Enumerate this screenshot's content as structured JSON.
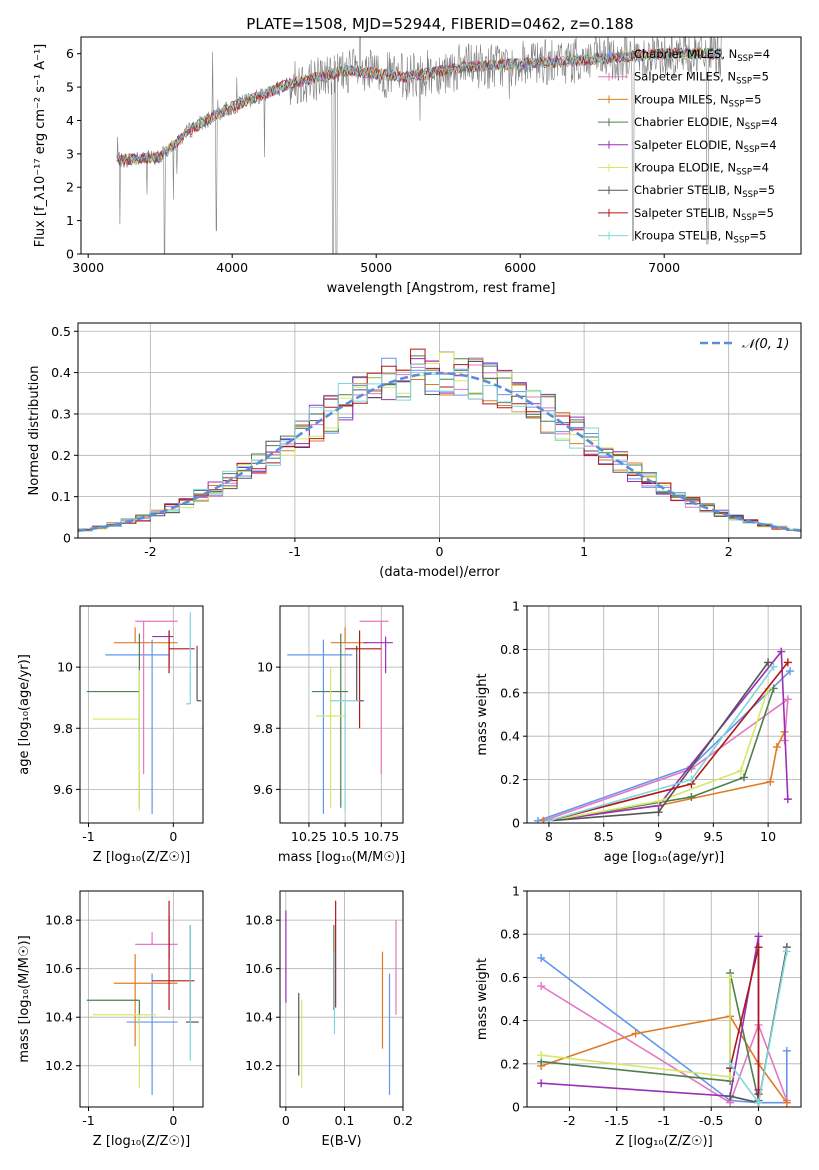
{
  "figure": {
    "title": "PLATE=1508, MJD=52944, FIBERID=0462, z=0.188"
  },
  "series_colors": {
    "Chabrier MILES": "#6495ED",
    "Salpeter MILES": "#E377C2",
    "Kroupa MILES": "#E07B24",
    "Chabrier ELODIE": "#4E7F4E",
    "Salpeter ELODIE": "#9B30B5",
    "Kroupa ELODIE": "#D4E86A",
    "Chabrier STELIB": "#555555",
    "Salpeter STELIB": "#B01818",
    "Kroupa STELIB": "#7FD6DC"
  },
  "chart_data": [
    {
      "id": "spectrum",
      "type": "line",
      "xlabel": "wavelength [Angstrom, rest frame]",
      "ylabel": "Flux [f_λ10⁻¹⁷ erg cm⁻² s⁻¹ A⁻¹]",
      "xlim": [
        2950,
        7950
      ],
      "ylim": [
        0,
        6.5
      ],
      "xticks": [
        3000,
        4000,
        5000,
        6000,
        7000
      ],
      "yticks": [
        0,
        1,
        2,
        3,
        4,
        5,
        6
      ],
      "legend_position": "right",
      "legend": [
        {
          "label": "Chabrier MILES, N",
          "sub": "SSP",
          "suffix": "=4"
        },
        {
          "label": "Salpeter MILES, N",
          "sub": "SSP",
          "suffix": "=5"
        },
        {
          "label": "Kroupa MILES, N",
          "sub": "SSP",
          "suffix": "=5"
        },
        {
          "label": "Chabrier ELODIE, N",
          "sub": "SSP",
          "suffix": "=4"
        },
        {
          "label": "Salpeter ELODIE, N",
          "sub": "SSP",
          "suffix": "=4"
        },
        {
          "label": "Kroupa ELODIE, N",
          "sub": "SSP",
          "suffix": "=4"
        },
        {
          "label": "Chabrier STELIB, N",
          "sub": "SSP",
          "suffix": "=5"
        },
        {
          "label": "Salpeter STELIB, N",
          "sub": "SSP",
          "suffix": "=5"
        },
        {
          "label": "Kroupa STELIB, N",
          "sub": "SSP",
          "suffix": "=5"
        }
      ],
      "data_range": [
        3200,
        7400
      ],
      "continuum": [
        [
          3200,
          2.8
        ],
        [
          3500,
          2.9
        ],
        [
          3700,
          3.7
        ],
        [
          3900,
          4.2
        ],
        [
          4100,
          4.6
        ],
        [
          4400,
          5.1
        ],
        [
          4800,
          5.5
        ],
        [
          5200,
          5.3
        ],
        [
          5600,
          5.6
        ],
        [
          6000,
          5.7
        ],
        [
          6400,
          5.8
        ],
        [
          7000,
          6.0
        ],
        [
          7400,
          6.0
        ]
      ],
      "absorption_features": [
        [
          3530,
          0
        ],
        [
          3890,
          0.7
        ],
        [
          4700,
          0
        ],
        [
          4725,
          0
        ],
        [
          6785,
          0.4
        ],
        [
          7300,
          0.3
        ]
      ]
    },
    {
      "id": "residuals",
      "type": "histogram",
      "xlabel": "(data-model)/error",
      "ylabel": "Normed distribution",
      "xlim": [
        -2.5,
        2.5
      ],
      "ylim": [
        0,
        0.52
      ],
      "xticks": [
        -2,
        -1,
        0,
        1,
        2
      ],
      "yticks": [
        0,
        0.1,
        0.2,
        0.3,
        0.4,
        0.5
      ],
      "grid": true,
      "legend": "𝒩(0, 1)",
      "legend_position": "upper right",
      "bin_width": 0.1,
      "reference_curve": "normal(0,1)"
    },
    {
      "id": "age_vs_Z",
      "type": "errorbar",
      "xlabel": "Z [log₁₀(Z/Z☉)]",
      "ylabel": "age  [log₁₀(age/yr)]",
      "xlim": [
        -1.1,
        0.35
      ],
      "ylim": [
        9.49,
        10.2
      ],
      "xticks": [
        -1,
        0
      ],
      "yticks": [
        9.6,
        9.8,
        10.0
      ],
      "grid": true,
      "points": [
        {
          "name": "Chabrier MILES",
          "x": -0.25,
          "xerr": [
            0.55,
            0.2
          ],
          "y": 10.04,
          "yerr": [
            0.52,
            0.05
          ]
        },
        {
          "name": "Salpeter MILES",
          "x": -0.35,
          "xerr": [
            0.1,
            0.4
          ],
          "y": 10.15,
          "yerr": [
            0.5,
            0.0
          ]
        },
        {
          "name": "Kroupa MILES",
          "x": -0.45,
          "xerr": [
            0.25,
            0.5
          ],
          "y": 10.08,
          "yerr": [
            0.0,
            0.05
          ]
        },
        {
          "name": "Chabrier ELODIE",
          "x": -0.4,
          "xerr": [
            0.62,
            0.0
          ],
          "y": 9.92,
          "yerr": [
            0.38,
            0.19
          ]
        },
        {
          "name": "Salpeter ELODIE",
          "x": -0.05,
          "xerr": [
            0.2,
            0.05
          ],
          "y": 10.1,
          "yerr": [
            0.1,
            0.02
          ]
        },
        {
          "name": "Kroupa ELODIE",
          "x": -0.4,
          "xerr": [
            0.55,
            0.0
          ],
          "y": 9.83,
          "yerr": [
            0.3,
            0.16
          ]
        },
        {
          "name": "Chabrier STELIB",
          "x": 0.28,
          "xerr": [
            0.0,
            0.05
          ],
          "y": 9.89,
          "yerr": [
            0.0,
            0.18
          ]
        },
        {
          "name": "Salpeter STELIB",
          "x": -0.05,
          "xerr": [
            0.0,
            0.3
          ],
          "y": 10.06,
          "yerr": [
            0.08,
            0.06
          ]
        },
        {
          "name": "Kroupa STELIB",
          "x": 0.2,
          "xerr": [
            0.05,
            0.0
          ],
          "y": 9.88,
          "yerr": [
            0.0,
            0.3
          ]
        }
      ]
    },
    {
      "id": "age_vs_mass",
      "type": "errorbar",
      "xlabel": "mass [log₁₀(M/M☉)]",
      "ylabel": "",
      "xlim": [
        10.05,
        10.9
      ],
      "ylim": [
        9.49,
        10.2
      ],
      "xticks": [
        10.25,
        10.5,
        10.75
      ],
      "yticks": [
        9.6,
        9.8,
        10.0
      ],
      "grid": true,
      "points": [
        {
          "name": "Chabrier MILES",
          "x": 10.35,
          "xerr": [
            0.25,
            0.2
          ],
          "y": 10.04,
          "yerr": [
            0.52,
            0.05
          ]
        },
        {
          "name": "Salpeter MILES",
          "x": 10.75,
          "xerr": [
            0.15,
            0.05
          ],
          "y": 10.15,
          "yerr": [
            0.5,
            0.0
          ]
        },
        {
          "name": "Kroupa MILES",
          "x": 10.5,
          "xerr": [
            0.1,
            0.15
          ],
          "y": 10.08,
          "yerr": [
            0.0,
            0.05
          ]
        },
        {
          "name": "Chabrier ELODIE",
          "x": 10.47,
          "xerr": [
            0.2,
            0.05
          ],
          "y": 9.92,
          "yerr": [
            0.38,
            0.19
          ]
        },
        {
          "name": "Salpeter ELODIE",
          "x": 10.78,
          "xerr": [
            0.15,
            0.05
          ],
          "y": 10.08,
          "yerr": [
            0.1,
            0.02
          ]
        },
        {
          "name": "Kroupa ELODIE",
          "x": 10.4,
          "xerr": [
            0.1,
            0.1
          ],
          "y": 9.84,
          "yerr": [
            0.3,
            0.16
          ]
        },
        {
          "name": "Chabrier STELIB",
          "x": 10.58,
          "xerr": [
            0.0,
            0.05
          ],
          "y": 9.89,
          "yerr": [
            0.0,
            0.18
          ]
        },
        {
          "name": "Salpeter STELIB",
          "x": 10.6,
          "xerr": [
            0.1,
            0.15
          ],
          "y": 10.06,
          "yerr": [
            0.26,
            0.06
          ]
        },
        {
          "name": "Kroupa STELIB",
          "x": 10.5,
          "xerr": [
            0.1,
            0.1
          ],
          "y": 9.89,
          "yerr": [
            0.36,
            0.0
          ]
        }
      ]
    },
    {
      "id": "weight_vs_age",
      "type": "line",
      "xlabel": "age  [log₁₀(age/yr)]",
      "ylabel": "mass weight",
      "xlim": [
        7.8,
        10.3
      ],
      "ylim": [
        0,
        1.0
      ],
      "xticks": [
        8.0,
        8.5,
        9.0,
        9.5,
        10.0
      ],
      "yticks": [
        0.0,
        0.2,
        0.4,
        0.6,
        0.8,
        1.0
      ],
      "grid": true,
      "series": [
        {
          "name": "Chabrier MILES",
          "x": [
            7.9,
            9.3,
            10.2
          ],
          "y": [
            0.01,
            0.26,
            0.7
          ]
        },
        {
          "name": "Salpeter MILES",
          "x": [
            7.95,
            9.3,
            10.18,
            10.15
          ],
          "y": [
            0.01,
            0.25,
            0.57,
            0.38
          ]
        },
        {
          "name": "Kroupa MILES",
          "x": [
            7.95,
            9.0,
            10.02,
            10.08,
            10.15
          ],
          "y": [
            0.01,
            0.08,
            0.19,
            0.35,
            0.42
          ]
        },
        {
          "name": "Chabrier ELODIE",
          "x": [
            8.0,
            9.3,
            9.78,
            10.05
          ],
          "y": [
            0.01,
            0.12,
            0.21,
            0.62
          ]
        },
        {
          "name": "Salpeter ELODIE",
          "x": [
            8.0,
            9.0,
            10.12,
            10.18
          ],
          "y": [
            0.01,
            0.08,
            0.79,
            0.11
          ]
        },
        {
          "name": "Kroupa ELODIE",
          "x": [
            8.0,
            9.0,
            9.75,
            10.0
          ],
          "y": [
            0.01,
            0.1,
            0.24,
            0.62
          ]
        },
        {
          "name": "Chabrier STELIB",
          "x": [
            8.0,
            9.0,
            10.0
          ],
          "y": [
            0.01,
            0.05,
            0.74
          ]
        },
        {
          "name": "Salpeter STELIB",
          "x": [
            8.0,
            9.3,
            10.18
          ],
          "y": [
            0.01,
            0.18,
            0.74
          ]
        },
        {
          "name": "Kroupa STELIB",
          "x": [
            8.0,
            9.3,
            10.05
          ],
          "y": [
            0.01,
            0.2,
            0.72
          ]
        }
      ]
    },
    {
      "id": "mass_vs_Z",
      "type": "errorbar",
      "xlabel": "Z [log₁₀(Z/Z☉)]",
      "ylabel": "mass [log₁₀(M/M☉)]",
      "xlim": [
        -1.1,
        0.35
      ],
      "ylim": [
        10.03,
        10.92
      ],
      "xticks": [
        -1,
        0
      ],
      "yticks": [
        10.2,
        10.4,
        10.6,
        10.8
      ],
      "grid": true,
      "points": [
        {
          "name": "Chabrier MILES",
          "x": -0.25,
          "xerr": [
            0.3,
            0.3
          ],
          "y": 10.38,
          "yerr": [
            0.3,
            0.2
          ]
        },
        {
          "name": "Salpeter MILES",
          "x": -0.25,
          "xerr": [
            0.2,
            0.3
          ],
          "y": 10.7,
          "yerr": [
            0.0,
            0.05
          ]
        },
        {
          "name": "Kroupa MILES",
          "x": -0.45,
          "xerr": [
            0.25,
            0.5
          ],
          "y": 10.54,
          "yerr": [
            0.26,
            0.12
          ]
        },
        {
          "name": "Chabrier ELODIE",
          "x": -0.4,
          "xerr": [
            0.62,
            0.0
          ],
          "y": 10.47,
          "yerr": [
            0.1,
            0.0
          ]
        },
        {
          "name": "Salpeter ELODIE",
          "x": -0.05,
          "xerr": [
            0.0,
            0.0
          ],
          "y": 10.72,
          "yerr": [
            0.08,
            0.1
          ]
        },
        {
          "name": "Kroupa ELODIE",
          "x": -0.4,
          "xerr": [
            0.55,
            0.2
          ],
          "y": 10.41,
          "yerr": [
            0.3,
            0.0
          ]
        },
        {
          "name": "Chabrier STELIB",
          "x": 0.2,
          "xerr": [
            0.05,
            0.1
          ],
          "y": 10.38,
          "yerr": [
            0.0,
            0.4
          ]
        },
        {
          "name": "Salpeter STELIB",
          "x": -0.05,
          "xerr": [
            0.2,
            0.3
          ],
          "y": 10.55,
          "yerr": [
            0.12,
            0.33
          ]
        },
        {
          "name": "Kroupa STELIB",
          "x": 0.2,
          "xerr": [
            0.0,
            0.0
          ],
          "y": 10.38,
          "yerr": [
            0.16,
            0.4
          ]
        }
      ]
    },
    {
      "id": "mass_vs_ebv",
      "type": "errorbar",
      "xlabel": "E(B-V)",
      "ylabel": "",
      "xlim": [
        -0.01,
        0.2
      ],
      "ylim": [
        10.03,
        10.92
      ],
      "xticks": [
        0.0,
        0.1,
        0.2
      ],
      "yticks": [
        10.2,
        10.4,
        10.6,
        10.8
      ],
      "grid": true,
      "points": [
        {
          "name": "Chabrier MILES",
          "x": 0.177,
          "y": 10.38,
          "yerr": [
            0.3,
            0.2
          ]
        },
        {
          "name": "Salpeter MILES",
          "x": 0.188,
          "y": 10.61,
          "yerr": [
            0.2,
            0.19
          ]
        },
        {
          "name": "Kroupa MILES",
          "x": 0.165,
          "y": 10.48,
          "yerr": [
            0.21,
            0.19
          ]
        },
        {
          "name": "Chabrier ELODIE",
          "x": 0.082,
          "y": 10.55,
          "yerr": [
            0.12,
            0.23
          ]
        },
        {
          "name": "Salpeter ELODIE",
          "x": 0.0,
          "y": 10.65,
          "yerr": [
            0.19,
            0.19
          ]
        },
        {
          "name": "Kroupa ELODIE",
          "x": 0.027,
          "y": 10.3,
          "yerr": [
            0.19,
            0.17
          ]
        },
        {
          "name": "Chabrier STELIB",
          "x": 0.022,
          "y": 10.33,
          "yerr": [
            0.17,
            0.17
          ]
        },
        {
          "name": "Salpeter STELIB",
          "x": 0.085,
          "y": 10.66,
          "yerr": [
            0.22,
            0.22
          ]
        },
        {
          "name": "Kroupa STELIB",
          "x": 0.083,
          "y": 10.5,
          "yerr": [
            0.17,
            0.17
          ]
        }
      ]
    },
    {
      "id": "weight_vs_Z",
      "type": "line",
      "xlabel": "Z [log₁₀(Z/Z☉)]",
      "ylabel": "mass weight",
      "xlim": [
        -2.45,
        0.45
      ],
      "ylim": [
        0,
        1.0
      ],
      "xticks": [
        -2.0,
        -1.5,
        -1.0,
        -0.5,
        0.0
      ],
      "yticks": [
        0.0,
        0.2,
        0.4,
        0.6,
        0.8,
        1.0
      ],
      "grid": true,
      "series": [
        {
          "name": "Chabrier MILES",
          "x": [
            -2.3,
            -0.3,
            -0.3,
            0.0,
            0.3,
            0.3
          ],
          "y": [
            0.69,
            0.03,
            0.03,
            0.02,
            0.02,
            0.26
          ]
        },
        {
          "name": "Salpeter MILES",
          "x": [
            -2.3,
            -0.3,
            0.0,
            0.3
          ],
          "y": [
            0.56,
            0.02,
            0.38,
            0.03
          ]
        },
        {
          "name": "Kroupa MILES",
          "x": [
            -2.3,
            -1.3,
            -0.3,
            0.0,
            0.3
          ],
          "y": [
            0.19,
            0.34,
            0.42,
            0.2,
            0.02
          ]
        },
        {
          "name": "Chabrier ELODIE",
          "x": [
            -2.3,
            -0.3,
            -0.3,
            0.0
          ],
          "y": [
            0.21,
            0.12,
            0.62,
            0.03
          ]
        },
        {
          "name": "Salpeter ELODIE",
          "x": [
            -2.3,
            -0.3,
            0.0,
            0.0
          ],
          "y": [
            0.11,
            0.05,
            0.79,
            0.08
          ]
        },
        {
          "name": "Kroupa ELODIE",
          "x": [
            -2.3,
            -0.3,
            -0.3
          ],
          "y": [
            0.24,
            0.14,
            0.6
          ]
        },
        {
          "name": "Chabrier STELIB",
          "x": [
            -0.3,
            0.0,
            0.3
          ],
          "y": [
            0.05,
            0.02,
            0.74
          ]
        },
        {
          "name": "Salpeter STELIB",
          "x": [
            -0.3,
            0.0,
            0.0
          ],
          "y": [
            0.18,
            0.74,
            0.06
          ]
        },
        {
          "name": "Kroupa STELIB",
          "x": [
            -0.3,
            0.0,
            0.3
          ],
          "y": [
            0.2,
            0.02,
            0.72
          ]
        }
      ]
    }
  ]
}
